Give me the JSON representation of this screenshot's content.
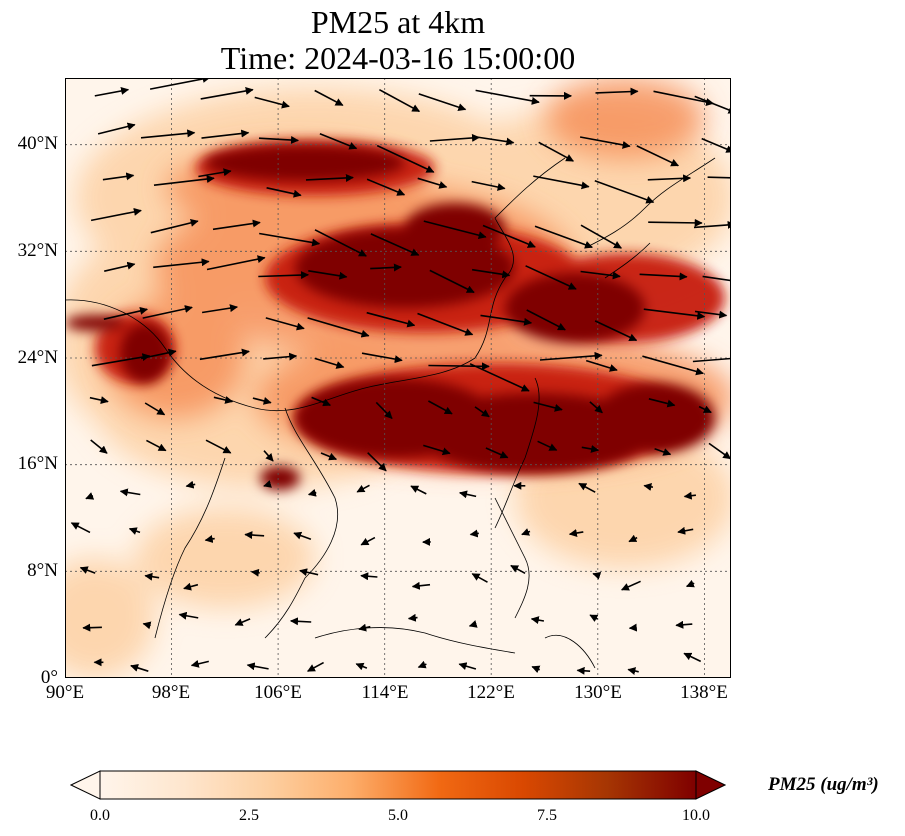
{
  "title": {
    "line1": "PM25 at 4km",
    "line2": "Time: 2024-03-16 15:00:00"
  },
  "map": {
    "lon_range": [
      90,
      140
    ],
    "lat_range": [
      0,
      45
    ],
    "x_ticks": [
      "90°E",
      "98°E",
      "106°E",
      "114°E",
      "122°E",
      "130°E",
      "138°E"
    ],
    "y_ticks": [
      "0°",
      "8°N",
      "16°N",
      "24°N",
      "32°N",
      "40°N"
    ],
    "gridlines": true,
    "wind_vectors": true
  },
  "colorbar": {
    "label": "PM25 (ug/m³)",
    "min": 0.0,
    "max": 10.0,
    "ticks": [
      "0.0",
      "2.5",
      "5.0",
      "7.5",
      "10.0"
    ],
    "colors": [
      "#fff5eb",
      "#fee6ce",
      "#fdd0a2",
      "#fdae6b",
      "#f16913",
      "#d94801",
      "#a63603",
      "#7f0000"
    ],
    "extend": "both"
  }
}
